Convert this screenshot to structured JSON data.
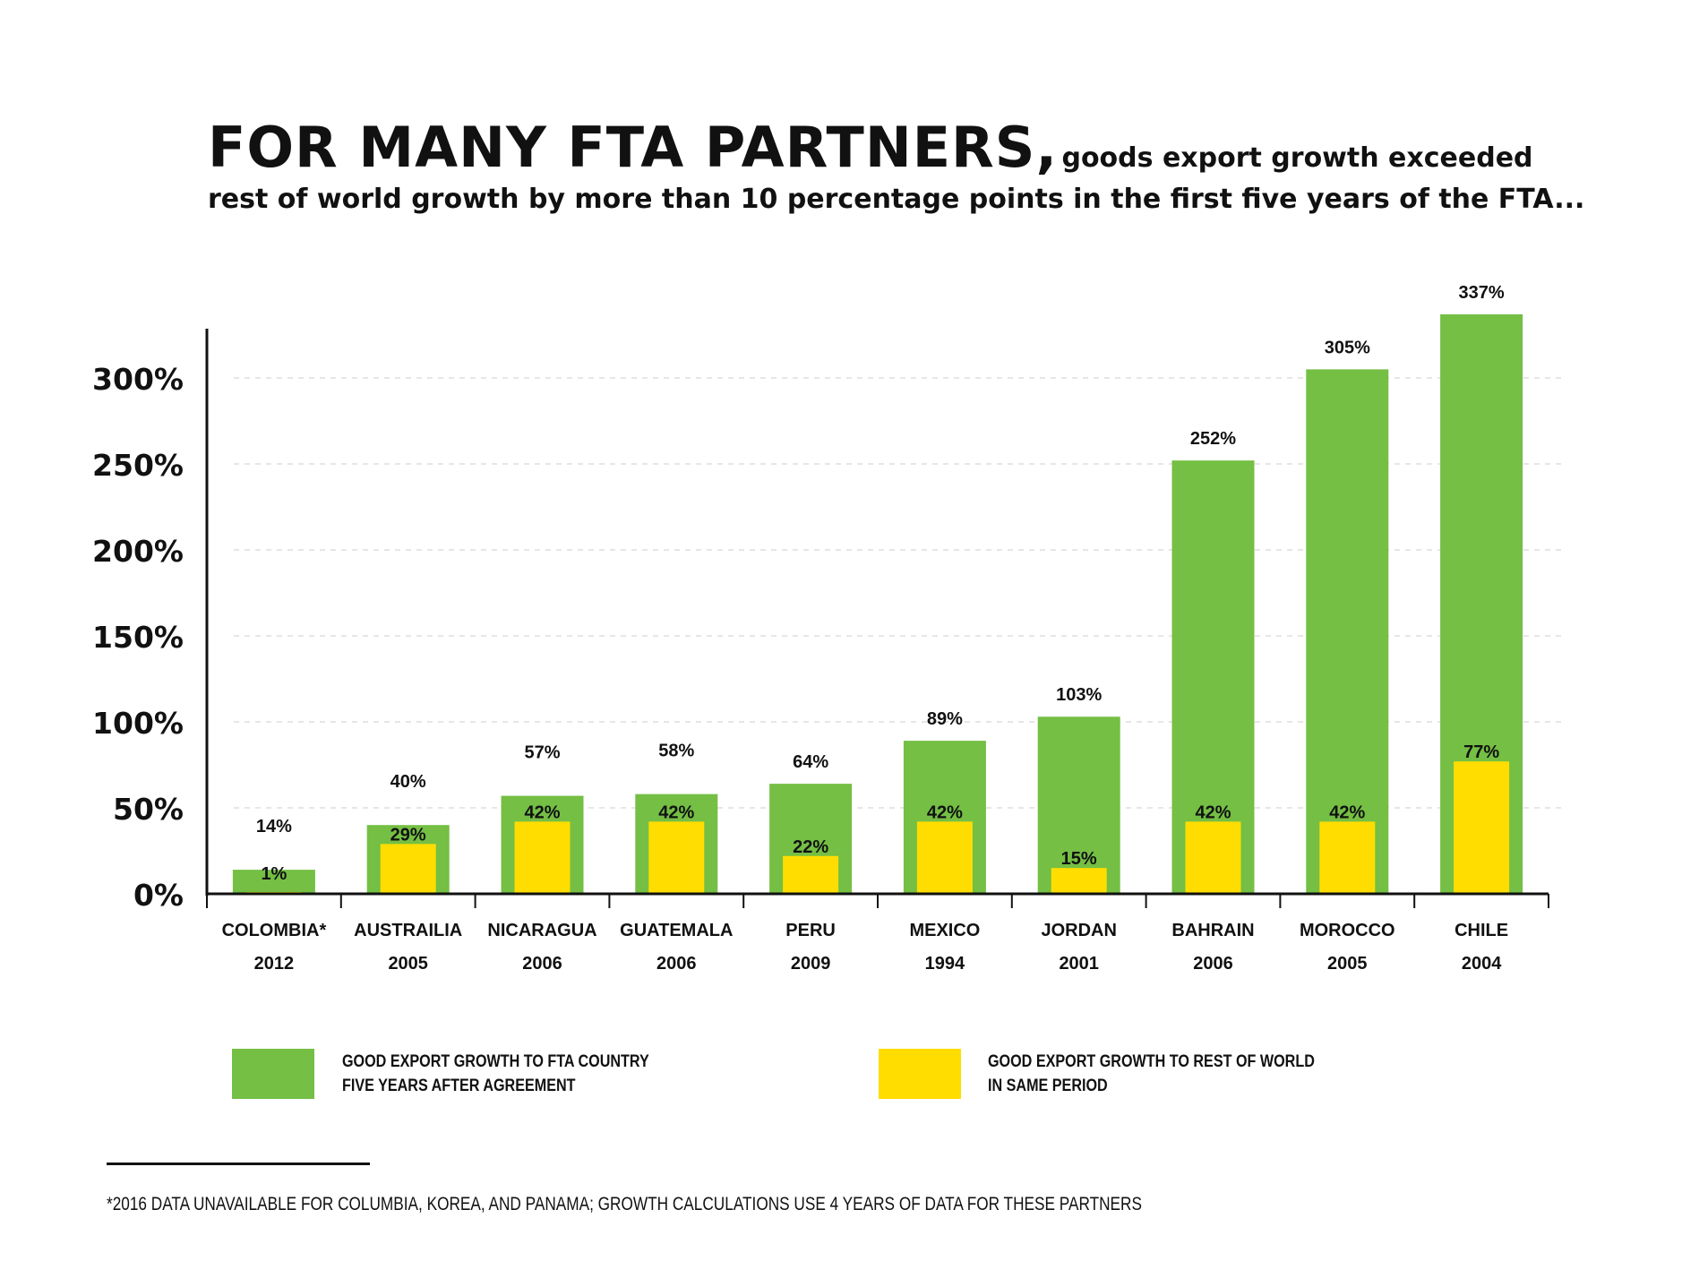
{
  "chart_data": {
    "type": "bar",
    "title_main": "FOR MANY FTA PARTNERS,",
    "title_rest": "goods export growth exceeded",
    "subtitle": "rest of world growth by more than 10 percentage points in the first five years of the FTA...",
    "categories": [
      "COLOMBIA*",
      "AUSTRAILIA",
      "NICARAGUA",
      "GUATEMALA",
      "PERU",
      "MEXICO",
      "JORDAN",
      "BAHRAIN",
      "MOROCCO",
      "CHILE"
    ],
    "years": [
      "2012",
      "2005",
      "2006",
      "2006",
      "2009",
      "1994",
      "2001",
      "2006",
      "2005",
      "2004"
    ],
    "series": [
      {
        "name": "GOOD EXPORT GROWTH TO FTA COUNTRY FIVE YEARS AFTER AGREEMENT",
        "legend_lines": [
          "GOOD EXPORT GROWTH TO FTA COUNTRY",
          "FIVE YEARS AFTER AGREEMENT"
        ],
        "color": "#74BF44",
        "values": [
          14,
          40,
          57,
          58,
          64,
          89,
          103,
          252,
          305,
          337
        ]
      },
      {
        "name": "GOOD EXPORT GROWTH TO REST OF WORLD IN SAME PERIOD",
        "legend_lines": [
          "GOOD EXPORT GROWTH TO REST OF WORLD",
          "IN SAME PERIOD"
        ],
        "color": "#FFDD00",
        "values": [
          1,
          29,
          42,
          42,
          22,
          42,
          15,
          42,
          42,
          77
        ]
      }
    ],
    "yticks": [
      0,
      50,
      100,
      150,
      200,
      250,
      300
    ],
    "ytick_labels": [
      "0%",
      "50%",
      "100%",
      "150%",
      "200%",
      "250%",
      "300%"
    ],
    "ylim": [
      0,
      330
    ],
    "grid": true,
    "legend_position": "bottom",
    "xlabel": "",
    "ylabel": ""
  },
  "footnote": "*2016 DATA UNAVAILABLE FOR COLUMBIA, KOREA, AND PANAMA; GROWTH CALCULATIONS USE 4 YEARS OF DATA FOR THESE PARTNERS"
}
